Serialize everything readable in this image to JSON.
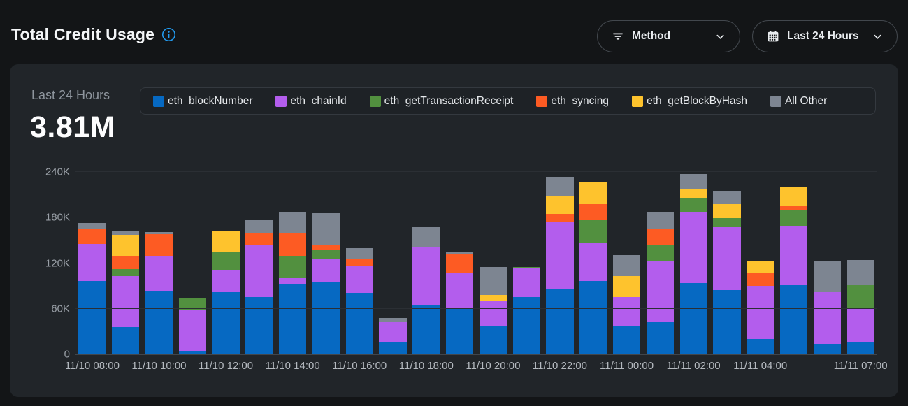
{
  "header": {
    "title": "Total Credit Usage",
    "method_button": {
      "label": "Method"
    },
    "range_button": {
      "label": "Last 24 Hours"
    }
  },
  "stat": {
    "period": "Last 24 Hours",
    "total": "3.81M"
  },
  "colors": {
    "page_bg": "#131517",
    "card_bg": "#212529",
    "accent_info": "#229bf0",
    "grid_line": "#2b2f34",
    "axis_line": "#41464c"
  },
  "chart_data": {
    "type": "bar",
    "stacked": true,
    "title": "Total Credit Usage",
    "period": "Last 24 Hours",
    "total_display": "3.81M",
    "value_unit": "thousands of credits",
    "ylim": [
      0,
      240
    ],
    "y_ticks": [
      "0",
      "60K",
      "120K",
      "180K",
      "240K"
    ],
    "grid": true,
    "legend_position": "top",
    "categories": [
      "11/10 08:00",
      "11/10 09:00",
      "11/10 10:00",
      "11/10 11:00",
      "11/10 12:00",
      "11/10 13:00",
      "11/10 14:00",
      "11/10 15:00",
      "11/10 16:00",
      "11/10 17:00",
      "11/10 18:00",
      "11/10 19:00",
      "11/10 20:00",
      "11/10 21:00",
      "11/10 22:00",
      "11/10 23:00",
      "11/11 00:00",
      "11/11 01:00",
      "11/11 02:00",
      "11/11 03:00",
      "11/11 04:00",
      "11/11 05:00",
      "11/11 06:00",
      "11/11 07:00"
    ],
    "x_ticks": [
      {
        "index": 0,
        "label": "11/10 08:00"
      },
      {
        "index": 2,
        "label": "11/10 10:00"
      },
      {
        "index": 4,
        "label": "11/10 12:00"
      },
      {
        "index": 6,
        "label": "11/10 14:00"
      },
      {
        "index": 8,
        "label": "11/10 16:00"
      },
      {
        "index": 10,
        "label": "11/10 18:00"
      },
      {
        "index": 12,
        "label": "11/10 20:00"
      },
      {
        "index": 14,
        "label": "11/10 22:00"
      },
      {
        "index": 16,
        "label": "11/11 00:00"
      },
      {
        "index": 18,
        "label": "11/11 02:00"
      },
      {
        "index": 20,
        "label": "11/11 04:00"
      },
      {
        "index": 23,
        "label": "11/11 07:00"
      }
    ],
    "series": [
      {
        "name": "eth_blockNumber",
        "color": "#0669c2",
        "values": [
          97,
          36,
          83,
          5,
          82,
          75,
          93,
          95,
          81,
          16,
          64,
          60,
          38,
          75,
          86,
          97,
          37,
          42,
          94,
          85,
          20,
          91,
          14,
          17
        ]
      },
      {
        "name": "eth_chainId",
        "color": "#b35ded",
        "values": [
          48,
          67,
          47,
          53,
          28,
          69,
          7,
          31,
          36,
          26,
          78,
          47,
          32,
          38,
          89,
          49,
          38,
          81,
          93,
          82,
          70,
          77,
          68,
          43
        ]
      },
      {
        "name": "eth_getTransactionReceipt",
        "color": "#52903f",
        "values": [
          0,
          9,
          0,
          16,
          25,
          0,
          29,
          11,
          0,
          0,
          0,
          0,
          0,
          2,
          0,
          31,
          0,
          21,
          18,
          12,
          0,
          21,
          0,
          31
        ]
      },
      {
        "name": "eth_syncing",
        "color": "#fd5b23",
        "values": [
          20,
          18,
          28,
          0,
          0,
          16,
          31,
          7,
          9,
          0,
          0,
          25,
          0,
          0,
          10,
          21,
          0,
          22,
          0,
          0,
          18,
          6,
          0,
          0
        ]
      },
      {
        "name": "eth_getBlockByHash",
        "color": "#fec32d",
        "values": [
          0,
          27,
          0,
          0,
          27,
          0,
          0,
          0,
          0,
          0,
          0,
          0,
          8,
          0,
          23,
          28,
          28,
          0,
          12,
          19,
          15,
          25,
          0,
          0
        ]
      },
      {
        "name": "All Other",
        "color": "#7d8591",
        "values": [
          8,
          5,
          3,
          0,
          0,
          17,
          28,
          42,
          14,
          6,
          25,
          2,
          37,
          0,
          25,
          0,
          28,
          22,
          20,
          16,
          0,
          0,
          41,
          33
        ]
      }
    ]
  }
}
